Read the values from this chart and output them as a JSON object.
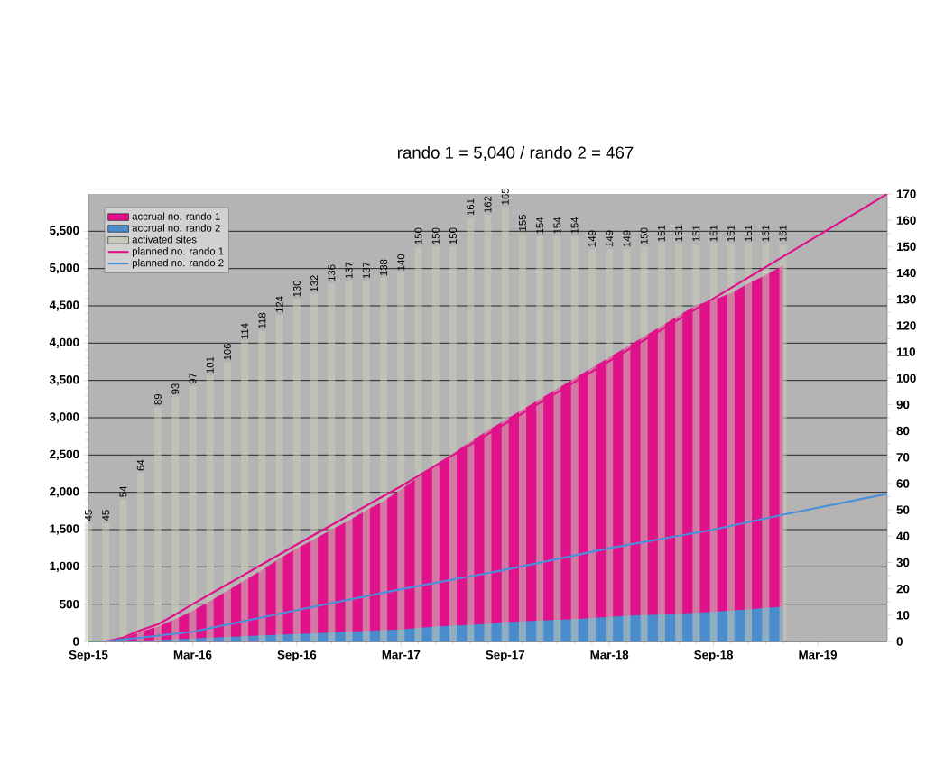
{
  "chart_data": {
    "type": "area",
    "title": "rando 1 = 5,040 / rando 2 = 467",
    "x": [
      "2015-09",
      "2015-10",
      "2015-11",
      "2015-12",
      "2016-01",
      "2016-02",
      "2016-03",
      "2016-04",
      "2016-05",
      "2016-06",
      "2016-07",
      "2016-08",
      "2016-09",
      "2016-10",
      "2016-11",
      "2016-12",
      "2017-01",
      "2017-02",
      "2017-03",
      "2017-04",
      "2017-05",
      "2017-06",
      "2017-07",
      "2017-08",
      "2017-09",
      "2017-10",
      "2017-11",
      "2017-12",
      "2018-01",
      "2018-02",
      "2018-03",
      "2018-04",
      "2018-05",
      "2018-06",
      "2018-07",
      "2018-08",
      "2018-09",
      "2018-10",
      "2018-11",
      "2018-12",
      "2019-01"
    ],
    "series": [
      {
        "name": "accrual no. rando 1",
        "color": "#e0128a",
        "values": [
          0,
          0,
          40,
          130,
          200,
          300,
          410,
          540,
          680,
          820,
          960,
          1110,
          1250,
          1370,
          1500,
          1620,
          1760,
          1880,
          2040,
          2200,
          2370,
          2520,
          2680,
          2830,
          2970,
          3110,
          3250,
          3390,
          3530,
          3670,
          3810,
          3950,
          4090,
          4230,
          4370,
          4510,
          4580,
          4670,
          4800,
          4910,
          5040
        ]
      },
      {
        "name": "accrual no. rando 2",
        "color": "#4a8ccc",
        "values": [
          0,
          0,
          0,
          10,
          20,
          30,
          40,
          50,
          60,
          70,
          80,
          90,
          100,
          110,
          120,
          130,
          140,
          150,
          160,
          180,
          200,
          210,
          225,
          235,
          260,
          270,
          280,
          290,
          300,
          315,
          330,
          345,
          355,
          365,
          375,
          385,
          400,
          415,
          430,
          450,
          467
        ]
      },
      {
        "name": "activated sites",
        "type": "bar",
        "axis": "y2",
        "color": "#c8cbb8",
        "values": [
          45,
          45,
          54,
          64,
          89,
          93,
          97,
          101,
          106,
          114,
          118,
          124,
          130,
          132,
          136,
          137,
          137,
          138,
          140,
          150,
          150,
          150,
          161,
          162,
          165,
          155,
          154,
          154,
          154,
          149,
          149,
          149,
          150,
          151,
          151,
          151,
          151,
          151,
          151,
          151,
          151
        ],
        "value_labels": [
          "45",
          "45",
          "54",
          "64",
          "89",
          "93",
          "97",
          "101",
          "106",
          "114",
          "118",
          "124",
          "130",
          "132",
          "136",
          "137",
          "137",
          "138",
          "140",
          "150",
          "150",
          "150",
          "161",
          "162",
          "165",
          "155",
          "154",
          "154",
          "154",
          "149",
          "149",
          "149",
          "150",
          "151",
          "151",
          "151",
          "151",
          "151",
          "151",
          "151",
          "151"
        ]
      },
      {
        "name": "planned no. rando 1",
        "type": "line",
        "color": "#e0128a",
        "x": [
          "2015-09",
          "2015-10",
          "2015-11",
          "2015-12",
          "2016-01",
          "2016-02",
          "2016-03",
          "2016-09",
          "2017-03",
          "2019-07"
        ],
        "values": [
          0,
          0,
          50,
          150,
          230,
          360,
          500,
          1300,
          2080,
          6000
        ]
      },
      {
        "name": "planned no. rando 2",
        "type": "line",
        "color": "#4a90d9",
        "x": [
          "2015-09",
          "2015-10",
          "2016-03",
          "2016-09",
          "2017-03",
          "2017-09",
          "2018-03",
          "2018-09",
          "2019-01",
          "2019-07"
        ],
        "values": [
          0,
          0,
          130,
          420,
          700,
          960,
          1250,
          1500,
          1700,
          1980
        ]
      }
    ],
    "xlim": [
      "2015-09",
      "2019-07"
    ],
    "xticks": [
      {
        "value": "2015-09",
        "label": "Sep-15"
      },
      {
        "value": "2016-03",
        "label": "Mar-16"
      },
      {
        "value": "2016-09",
        "label": "Sep-16"
      },
      {
        "value": "2017-03",
        "label": "Mar-17"
      },
      {
        "value": "2017-09",
        "label": "Sep-17"
      },
      {
        "value": "2018-03",
        "label": "Mar-18"
      },
      {
        "value": "2018-09",
        "label": "Sep-18"
      },
      {
        "value": "2019-03",
        "label": "Mar-19"
      }
    ],
    "ylim": [
      0,
      6000
    ],
    "yticks": [
      0,
      500,
      {
        "value": 1000,
        "label": "1,000"
      },
      {
        "value": 1500,
        "label": "1,500"
      },
      {
        "value": 2000,
        "label": "2,000"
      },
      {
        "value": 2500,
        "label": "2,500"
      },
      {
        "value": 3000,
        "label": "3,000"
      },
      {
        "value": 3500,
        "label": "3,500"
      },
      {
        "value": 4000,
        "label": "4,000"
      },
      {
        "value": 4500,
        "label": "4,500"
      },
      {
        "value": 5000,
        "label": "5,000"
      },
      {
        "value": 5500,
        "label": "5,500"
      }
    ],
    "y2lim": [
      0,
      170
    ],
    "y2ticks": [
      0,
      10,
      20,
      30,
      40,
      50,
      60,
      70,
      80,
      90,
      100,
      110,
      120,
      130,
      140,
      150,
      160,
      170
    ],
    "grid": "y",
    "legend": "top left"
  }
}
